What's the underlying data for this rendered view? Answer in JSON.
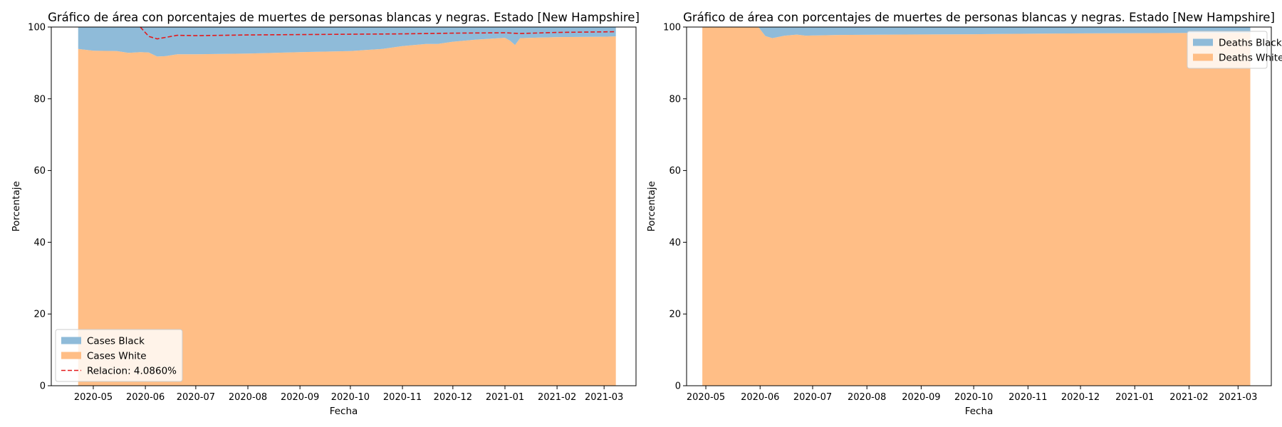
{
  "chart_data": [
    {
      "type": "area",
      "stacked": true,
      "title": "Gráfico de área con porcentajes de muertes de personas blancas y negras. Estado [New Hampshire]",
      "xlabel": "Fecha",
      "ylabel": "Porcentaje",
      "ylim": [
        0,
        100
      ],
      "xlim": [
        "2020-04-06",
        "2021-03-20"
      ],
      "x_ticks": [
        "2020-05",
        "2020-06",
        "2020-07",
        "2020-08",
        "2020-09",
        "2020-10",
        "2020-11",
        "2020-12",
        "2021-01",
        "2021-02",
        "2021-03"
      ],
      "y_ticks": [
        0,
        20,
        40,
        60,
        80,
        100
      ],
      "legend_position": "lower-left",
      "grid": false,
      "x": [
        "2020-04-22",
        "2020-05-01",
        "2020-05-15",
        "2020-05-22",
        "2020-05-29",
        "2020-06-03",
        "2020-06-08",
        "2020-06-13",
        "2020-06-20",
        "2020-07-01",
        "2020-08-01",
        "2020-09-01",
        "2020-10-01",
        "2020-10-20",
        "2020-11-01",
        "2020-11-15",
        "2020-11-22",
        "2020-12-01",
        "2020-12-15",
        "2021-01-01",
        "2021-01-04",
        "2021-01-07",
        "2021-01-10",
        "2021-02-01",
        "2021-03-01",
        "2021-03-08"
      ],
      "series": [
        {
          "name": "Cases White",
          "color": "#ffbe86",
          "values": [
            93.9,
            93.4,
            93.3,
            92.8,
            93.0,
            92.9,
            91.8,
            91.9,
            92.4,
            92.4,
            92.6,
            93.0,
            93.3,
            93.9,
            94.7,
            95.3,
            95.3,
            95.9,
            96.5,
            97.0,
            96.2,
            95.0,
            96.9,
            97.2,
            97.3,
            97.4
          ]
        },
        {
          "name": "Cases Black",
          "color": "#8fbbd9",
          "values": [
            6.1,
            6.6,
            6.7,
            7.2,
            7.0,
            7.1,
            8.2,
            8.1,
            7.6,
            7.6,
            7.4,
            7.0,
            6.7,
            6.1,
            5.3,
            4.7,
            4.7,
            4.1,
            3.5,
            3.0,
            3.8,
            5.0,
            3.1,
            2.8,
            2.7,
            2.6
          ]
        }
      ],
      "ratio_line": {
        "name": "Relacion: 4.0860%",
        "color": "#e31a1c",
        "style": "dashed",
        "x": [
          "2020-05-29",
          "2020-06-03",
          "2020-06-08",
          "2020-06-20",
          "2020-07-01",
          "2020-08-01",
          "2020-09-01",
          "2020-10-01",
          "2020-11-01",
          "2020-12-01",
          "2021-01-01",
          "2021-01-10",
          "2021-02-01",
          "2021-03-08"
        ],
        "values": [
          100,
          97.4,
          96.7,
          97.7,
          97.6,
          97.8,
          97.9,
          98.0,
          98.1,
          98.3,
          98.4,
          98.2,
          98.5,
          98.7
        ]
      }
    },
    {
      "type": "area",
      "stacked": true,
      "title": "Gráfico de área con porcentajes de muertes de personas blancas y negras. Estado [New Hampshire]",
      "xlabel": "Fecha",
      "ylabel": "Porcentaje",
      "ylim": [
        0,
        100
      ],
      "xlim": [
        "2020-04-20",
        "2021-03-20"
      ],
      "x_ticks": [
        "2020-05",
        "2020-06",
        "2020-07",
        "2020-08",
        "2020-09",
        "2020-10",
        "2020-11",
        "2020-12",
        "2021-01",
        "2021-02",
        "2021-03"
      ],
      "y_ticks": [
        0,
        20,
        40,
        60,
        80,
        100
      ],
      "legend_position": "upper-right",
      "grid": false,
      "x": [
        "2020-04-29",
        "2020-05-20",
        "2020-05-31",
        "2020-06-04",
        "2020-06-08",
        "2020-06-15",
        "2020-06-22",
        "2020-06-27",
        "2020-07-15",
        "2020-08-15",
        "2020-10-01",
        "2020-11-15",
        "2021-01-01",
        "2021-03-08"
      ],
      "series": [
        {
          "name": "Deaths White",
          "color": "#ffbe86",
          "values": [
            100,
            100,
            100,
            97.5,
            96.9,
            97.6,
            97.9,
            97.6,
            97.8,
            97.9,
            98.0,
            98.2,
            98.3,
            98.4
          ]
        },
        {
          "name": "Deaths Black",
          "color": "#8fbbd9",
          "values": [
            0,
            0,
            0,
            2.5,
            3.1,
            2.4,
            2.1,
            2.4,
            2.2,
            2.1,
            2.0,
            1.8,
            1.7,
            1.6
          ]
        }
      ]
    }
  ]
}
